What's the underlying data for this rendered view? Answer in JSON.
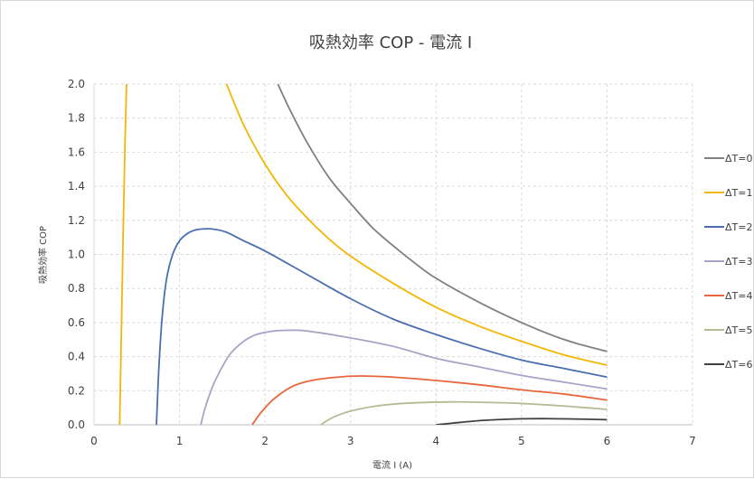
{
  "chart_data": {
    "type": "line",
    "title": "吸熱効率 COP - 電流 I",
    "xlabel": "電流 I (A)",
    "ylabel": "吸熱効率 COP",
    "xlim": [
      0,
      7
    ],
    "ylim": [
      0,
      2.0
    ],
    "xticks": [
      "0",
      "1",
      "2",
      "3",
      "4",
      "5",
      "6",
      "7"
    ],
    "yticks": [
      "0.0",
      "0.2",
      "0.4",
      "0.6",
      "0.8",
      "1.0",
      "1.2",
      "1.4",
      "1.6",
      "1.8",
      "2.0"
    ],
    "grid": true,
    "legend_position": "right",
    "series": [
      {
        "name": "ΔT=0",
        "color": "#808080",
        "points": [
          [
            2.15,
            2.0
          ],
          [
            2.3,
            1.84
          ],
          [
            2.5,
            1.65
          ],
          [
            2.75,
            1.45
          ],
          [
            3.0,
            1.3
          ],
          [
            3.25,
            1.16
          ],
          [
            3.5,
            1.05
          ],
          [
            3.75,
            0.95
          ],
          [
            4.0,
            0.86
          ],
          [
            4.5,
            0.72
          ],
          [
            5.0,
            0.6
          ],
          [
            5.5,
            0.5
          ],
          [
            6.0,
            0.43
          ]
        ]
      },
      {
        "name": "ΔT=1",
        "color": "#f2b705",
        "points": [
          [
            0.3,
            0.0
          ],
          [
            0.32,
            0.55
          ],
          [
            0.34,
            1.1
          ],
          [
            0.36,
            1.6
          ],
          [
            0.38,
            2.0
          ]
        ]
      },
      {
        "name": "ΔT=1",
        "color": "#f2b705",
        "points": [
          [
            1.55,
            2.0
          ],
          [
            1.75,
            1.76
          ],
          [
            2.0,
            1.53
          ],
          [
            2.25,
            1.35
          ],
          [
            2.5,
            1.21
          ],
          [
            2.75,
            1.09
          ],
          [
            3.0,
            0.99
          ],
          [
            3.5,
            0.83
          ],
          [
            4.0,
            0.69
          ],
          [
            4.5,
            0.58
          ],
          [
            5.0,
            0.49
          ],
          [
            5.5,
            0.41
          ],
          [
            6.0,
            0.35
          ]
        ]
      },
      {
        "name": "ΔT=2",
        "color": "#4a6fb0",
        "points": [
          [
            0.73,
            0.0
          ],
          [
            0.76,
            0.35
          ],
          [
            0.8,
            0.65
          ],
          [
            0.85,
            0.86
          ],
          [
            0.92,
            1.0
          ],
          [
            1.0,
            1.08
          ],
          [
            1.1,
            1.125
          ],
          [
            1.2,
            1.145
          ],
          [
            1.3,
            1.15
          ],
          [
            1.4,
            1.148
          ],
          [
            1.55,
            1.13
          ],
          [
            1.75,
            1.08
          ],
          [
            2.0,
            1.02
          ],
          [
            2.5,
            0.88
          ],
          [
            3.0,
            0.74
          ],
          [
            3.5,
            0.62
          ],
          [
            4.0,
            0.53
          ],
          [
            4.5,
            0.45
          ],
          [
            5.0,
            0.38
          ],
          [
            5.5,
            0.33
          ],
          [
            6.0,
            0.28
          ]
        ]
      },
      {
        "name": "ΔT=3",
        "color": "#a5a5c8",
        "points": [
          [
            1.25,
            0.0
          ],
          [
            1.3,
            0.1
          ],
          [
            1.4,
            0.24
          ],
          [
            1.5,
            0.34
          ],
          [
            1.6,
            0.42
          ],
          [
            1.75,
            0.49
          ],
          [
            1.9,
            0.53
          ],
          [
            2.1,
            0.55
          ],
          [
            2.3,
            0.555
          ],
          [
            2.5,
            0.55
          ],
          [
            3.0,
            0.51
          ],
          [
            3.5,
            0.46
          ],
          [
            4.0,
            0.39
          ],
          [
            4.5,
            0.34
          ],
          [
            5.0,
            0.29
          ],
          [
            5.5,
            0.25
          ],
          [
            6.0,
            0.21
          ]
        ]
      },
      {
        "name": "ΔT=4",
        "color": "#e8663c",
        "points": [
          [
            1.85,
            0.0
          ],
          [
            1.95,
            0.07
          ],
          [
            2.1,
            0.15
          ],
          [
            2.3,
            0.22
          ],
          [
            2.5,
            0.255
          ],
          [
            2.75,
            0.275
          ],
          [
            3.0,
            0.285
          ],
          [
            3.2,
            0.286
          ],
          [
            3.5,
            0.28
          ],
          [
            4.0,
            0.26
          ],
          [
            4.5,
            0.235
          ],
          [
            5.0,
            0.205
          ],
          [
            5.5,
            0.18
          ],
          [
            6.0,
            0.145
          ]
        ]
      },
      {
        "name": "ΔT=5",
        "color": "#b5bc94",
        "points": [
          [
            2.65,
            0.0
          ],
          [
            2.8,
            0.045
          ],
          [
            3.0,
            0.08
          ],
          [
            3.3,
            0.11
          ],
          [
            3.6,
            0.125
          ],
          [
            4.0,
            0.133
          ],
          [
            4.3,
            0.134
          ],
          [
            4.7,
            0.13
          ],
          [
            5.0,
            0.125
          ],
          [
            5.5,
            0.11
          ],
          [
            6.0,
            0.09
          ]
        ]
      },
      {
        "name": "ΔT=6",
        "color": "#404040",
        "points": [
          [
            4.0,
            0.0
          ],
          [
            4.2,
            0.01
          ],
          [
            4.5,
            0.024
          ],
          [
            4.8,
            0.032
          ],
          [
            5.0,
            0.035
          ],
          [
            5.3,
            0.036
          ],
          [
            5.6,
            0.034
          ],
          [
            6.0,
            0.03
          ]
        ]
      }
    ],
    "legend": [
      {
        "name": "ΔT=0",
        "color": "#808080"
      },
      {
        "name": "ΔT=1",
        "color": "#f2b705"
      },
      {
        "name": "ΔT=2",
        "color": "#4a6fb0"
      },
      {
        "name": "ΔT=3",
        "color": "#a5a5c8"
      },
      {
        "name": "ΔT=4",
        "color": "#e8663c"
      },
      {
        "name": "ΔT=5",
        "color": "#b5bc94"
      },
      {
        "name": "ΔT=6",
        "color": "#404040"
      }
    ]
  }
}
